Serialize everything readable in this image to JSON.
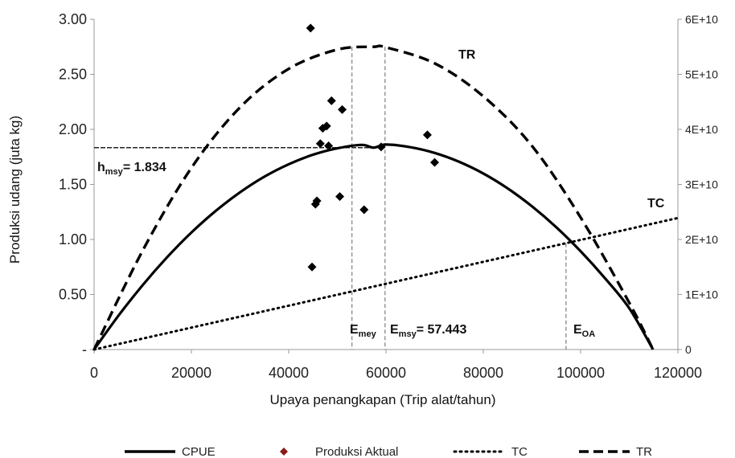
{
  "chart_data": {
    "type": "scatter",
    "xlabel": "Upaya penangkapan (Trip alat/tahun)",
    "ylabel": "Produksi udang (juta kg)",
    "xlim": [
      0,
      120000
    ],
    "ylim": [
      0,
      3.0
    ],
    "y2lim": [
      0,
      60000000000
    ],
    "x_ticks": [
      0,
      20000,
      40000,
      60000,
      80000,
      100000,
      120000
    ],
    "x_tick_labels": [
      "0",
      "20000",
      "40000",
      "60000",
      "80000",
      "100000",
      "120000"
    ],
    "y_ticks": [
      0,
      0.5,
      1.0,
      1.5,
      2.0,
      2.5,
      3.0
    ],
    "y_tick_labels": [
      "-",
      "0.50",
      "1.00",
      "1.50",
      "2.00",
      "2.50",
      "3.00"
    ],
    "y2_ticks": [
      0,
      10000000000,
      20000000000,
      30000000000,
      40000000000,
      50000000000,
      60000000000
    ],
    "y2_tick_labels": [
      "0",
      "1E+10",
      "2E+10",
      "3E+10",
      "4E+10",
      "5E+10",
      "6E+10"
    ],
    "grid": false,
    "legend_position": "bottom",
    "series": [
      {
        "name": "CPUE",
        "kind": "line",
        "axis": "left",
        "style": "solid",
        "x": [
          0,
          5000,
          10000,
          15000,
          20000,
          25000,
          30000,
          35000,
          40000,
          45000,
          50000,
          55000,
          57443,
          60000,
          65000,
          70000,
          75000,
          80000,
          85000,
          90000,
          95000,
          100000,
          105000,
          110000,
          114886
        ],
        "y": [
          0,
          0.307,
          0.586,
          0.838,
          1.063,
          1.259,
          1.428,
          1.57,
          1.683,
          1.77,
          1.828,
          1.859,
          1.834,
          1.862,
          1.838,
          1.786,
          1.706,
          1.599,
          1.464,
          1.301,
          1.111,
          0.893,
          0.648,
          0.375,
          0
        ]
      },
      {
        "name": "Produksi Aktual",
        "kind": "scatter",
        "axis": "left",
        "x": [
          44500,
          44800,
          45500,
          45800,
          46500,
          47000,
          47800,
          48200,
          48800,
          50500,
          51000,
          55500,
          59000,
          68500,
          70000
        ],
        "y": [
          2.92,
          0.75,
          1.32,
          1.35,
          1.87,
          2.01,
          2.03,
          1.85,
          2.26,
          1.39,
          2.18,
          1.27,
          1.84,
          1.95,
          1.7
        ]
      },
      {
        "name": "TC",
        "kind": "line",
        "axis": "right",
        "style": "dotted",
        "x": [
          0,
          120000
        ],
        "y": [
          0,
          23900000000
        ]
      },
      {
        "name": "TR",
        "kind": "line",
        "axis": "right",
        "style": "dashed",
        "x": [
          0,
          10000,
          20000,
          30000,
          40000,
          50000,
          57443,
          60000,
          70000,
          80000,
          90000,
          100000,
          110000,
          114886
        ],
        "y": [
          0,
          18000000000,
          33000000000,
          44000000000,
          51000000000,
          54500000000,
          55000000000,
          54900000000,
          52000000000,
          46000000000,
          37000000000,
          24000000000,
          8500000000,
          0
        ]
      }
    ],
    "annotations": {
      "tr_label": "TR",
      "tc_label": "TC",
      "hmsy": {
        "main": "h",
        "sub": "msy",
        "value_text": "= 1.834",
        "y": 1.834
      },
      "emey": {
        "main": "E",
        "sub": "mey",
        "x": 53000
      },
      "emsy": {
        "main": "E",
        "sub": "msy",
        "value_text": "= 57.443",
        "x": 59800
      },
      "eoa": {
        "main": "E",
        "sub": "OA",
        "x": 97000
      }
    }
  },
  "colors": {
    "series": "#000000",
    "marker": "#000000",
    "guide_line": "#888888",
    "axis": "#999999"
  }
}
